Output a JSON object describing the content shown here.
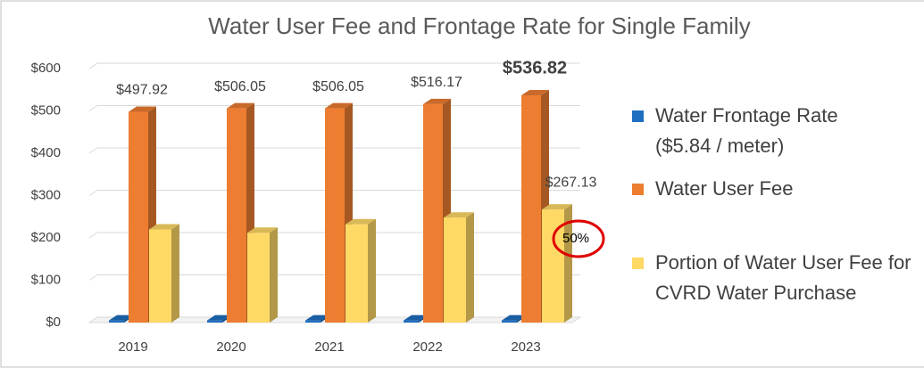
{
  "chart_data": {
    "type": "bar3d",
    "title": "Water User Fee and Frontage Rate for Single Family",
    "categories": [
      "2019",
      "2020",
      "2021",
      "2022",
      "2023"
    ],
    "series": [
      {
        "name": "Water Frontage Rate ($5.84 / meter)",
        "color": "#1f6fc0",
        "values": [
          5,
          5,
          5,
          5,
          5
        ]
      },
      {
        "name": "Water User Fee",
        "color": "#ed7d31",
        "values": [
          497.92,
          506.05,
          506.05,
          516.17,
          536.82
        ],
        "value_labels": [
          "$497.92",
          "$506.05",
          "$506.05",
          "$516.17",
          "$536.82"
        ]
      },
      {
        "name": "Portion of Water User Fee for CVRD Water Purchase",
        "color": "#ffd966",
        "values": [
          220,
          212,
          232,
          248,
          267.13
        ],
        "value_labels": [
          null,
          null,
          null,
          null,
          "$267.13"
        ]
      }
    ],
    "annotation": "50%",
    "ylim": [
      0,
      600
    ],
    "yticks": [
      {
        "value": 0,
        "label": "$0"
      },
      {
        "value": 100,
        "label": "$100"
      },
      {
        "value": 200,
        "label": "$200"
      },
      {
        "value": 300,
        "label": "$300"
      },
      {
        "value": 400,
        "label": "$400"
      },
      {
        "value": 500,
        "label": "$500"
      },
      {
        "value": 600,
        "label": "$600"
      }
    ],
    "grid": true,
    "legend": "right"
  }
}
